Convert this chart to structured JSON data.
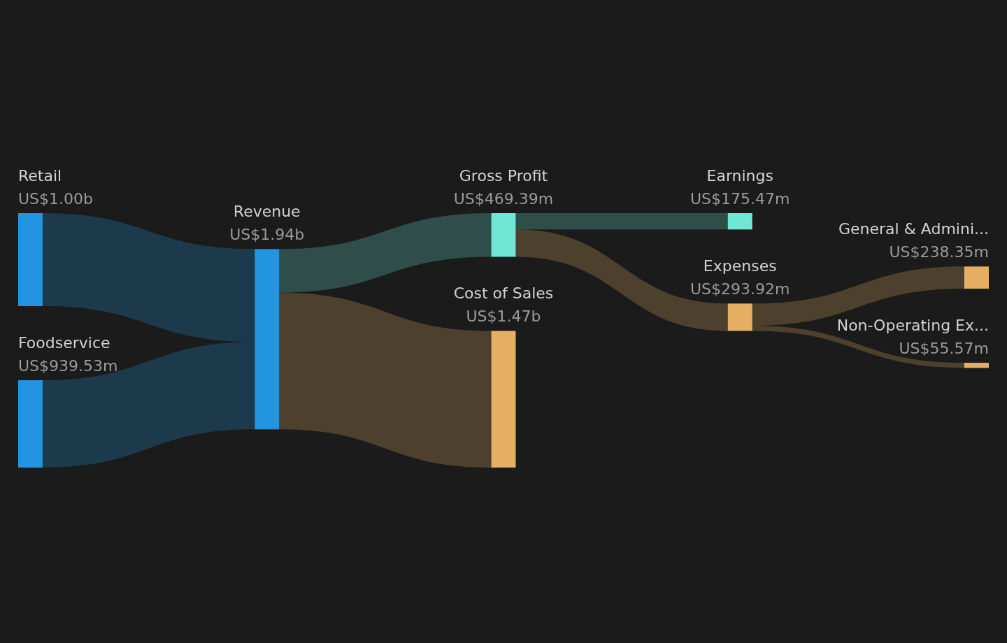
{
  "chart_data": {
    "type": "other",
    "categories": [
      "Retail",
      "Foodservice",
      "Revenue",
      "Gross Profit",
      "Cost of Sales",
      "Earnings",
      "Expenses",
      "General & Admini...",
      "Non-Operating Ex..."
    ],
    "colors": [
      "#2394df",
      "#2394df",
      "#2394df",
      "#6ee7d4",
      "#e5b063",
      "#6ee7d4",
      "#e5b063",
      "#e5b063",
      "#e5b063"
    ],
    "series": [
      {
        "values": [
          1000000000,
          939530000,
          null,
          null,
          null,
          null,
          null,
          null,
          null
        ],
        "value_labels": [
          "US$1.00b",
          "US$939.53m",
          null,
          null,
          null,
          null,
          null,
          null,
          null
        ]
      },
      {
        "values": [
          null,
          null,
          1940000000,
          null,
          null,
          null,
          null,
          null,
          null
        ],
        "value_labels": [
          null,
          null,
          "US$1.94b",
          null,
          null,
          null,
          null,
          null,
          null
        ]
      },
      {
        "values": [
          null,
          null,
          null,
          469390000,
          1470000000,
          null,
          null,
          null,
          null
        ],
        "value_labels": [
          null,
          null,
          null,
          "US$469.39m",
          "US$1.47b",
          null,
          null,
          null,
          null
        ]
      },
      {
        "values": [
          null,
          null,
          null,
          null,
          null,
          175470000,
          293920000,
          null,
          null
        ],
        "value_labels": [
          null,
          null,
          null,
          null,
          null,
          "US$175.47m",
          "US$293.92m",
          null,
          null
        ]
      },
      {
        "values": [
          null,
          null,
          null,
          null,
          null,
          null,
          null,
          238350000,
          55570000
        ],
        "value_labels": [
          null,
          null,
          null,
          null,
          null,
          null,
          null,
          "US$238.35m",
          "US$55.57m"
        ]
      }
    ]
  }
}
